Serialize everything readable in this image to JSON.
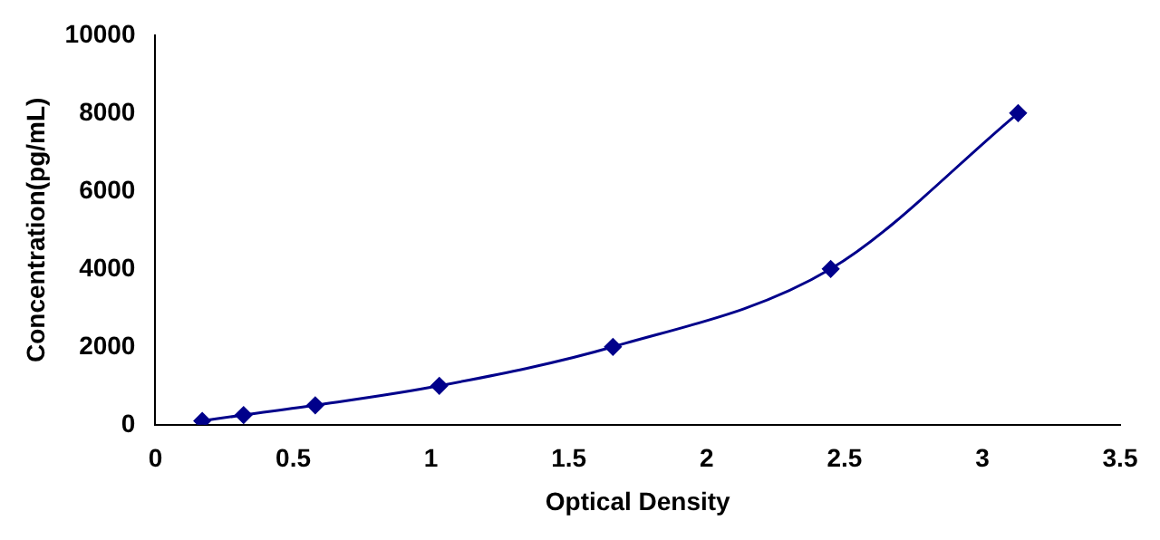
{
  "chart_data": {
    "type": "line",
    "xlabel": "Optical Density",
    "ylabel": "Concentration(pg/mL)",
    "x": [
      0.17,
      0.32,
      0.58,
      1.03,
      1.66,
      2.45,
      3.13
    ],
    "series": [
      {
        "color": "#00008b",
        "values": [
          100,
          250,
          500,
          1000,
          2000,
          4000,
          8000
        ]
      }
    ],
    "xlim": [
      0,
      3.5
    ],
    "xticks": [
      0,
      0.5,
      1,
      1.5,
      2,
      2.5,
      3,
      3.5
    ],
    "ylim": [
      0,
      10000
    ],
    "yticks": [
      0,
      2000,
      4000,
      6000,
      8000,
      10000
    ],
    "marker": "diamond",
    "line_style": "solid",
    "grid": false,
    "legend": false
  }
}
